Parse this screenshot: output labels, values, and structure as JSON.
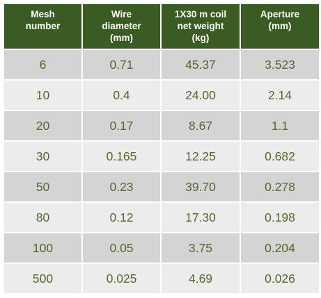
{
  "table": {
    "headers": [
      "Mesh\nnumber",
      "Wire\ndiameter\n(mm)",
      "1X30 m coil\nnet weight\n(kg)",
      "Aperture\n(mm)"
    ],
    "rows": [
      [
        "6",
        "0.71",
        "45.37",
        "3.523"
      ],
      [
        "10",
        "0.4",
        "24.00",
        "2.14"
      ],
      [
        "20",
        "0.17",
        "8.67",
        "1.1"
      ],
      [
        "30",
        "0.165",
        "12.25",
        "0.682"
      ],
      [
        "50",
        "0.23",
        "39.70",
        "0.278"
      ],
      [
        "80",
        "0.12",
        "17.30",
        "0.198"
      ],
      [
        "100",
        "0.05",
        "3.75",
        "0.204"
      ],
      [
        "500",
        "0.025",
        "4.69",
        "0.026"
      ]
    ]
  },
  "colors": {
    "header_bg": "#3a5c22",
    "header_text": "#ffffff",
    "row_odd_bg": "#d4d4d4",
    "row_even_bg": "#ececec",
    "cell_text": "#4e6a2d"
  }
}
